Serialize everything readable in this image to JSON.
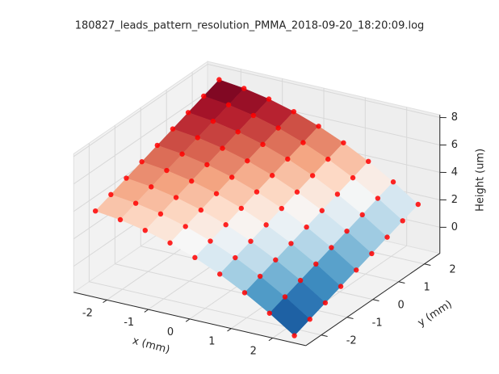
{
  "chart_data": {
    "type": "surface",
    "title": "180827_leads_pattern_resolution_PMMA_2018-09-20_18:20:09.log",
    "x_label": "x (mm)",
    "y_label": "y (mm)",
    "z_label": "Height (um)",
    "x": [
      -2.4,
      -1.8,
      -1.2,
      -0.6,
      0,
      0.6,
      1.2,
      1.8,
      2.4
    ],
    "y": [
      -2.4,
      -1.8,
      -1.2,
      -0.6,
      0,
      0.6,
      1.2,
      1.8,
      2.4
    ],
    "z": [
      [
        4.05,
        4.47,
        4.89,
        5.31,
        5.73,
        6.15,
        6.57,
        6.99,
        7.41
      ],
      [
        3.83,
        4.25,
        4.67,
        5.09,
        5.51,
        5.93,
        6.35,
        6.77,
        7.19
      ],
      [
        3.47,
        3.89,
        4.31,
        4.73,
        5.15,
        5.57,
        5.99,
        6.41,
        6.83
      ],
      [
        2.97,
        3.39,
        3.81,
        4.23,
        4.65,
        5.07,
        5.49,
        5.91,
        6.33
      ],
      [
        2.32,
        2.74,
        3.16,
        3.58,
        4,
        4.42,
        4.84,
        5.26,
        5.68
      ],
      [
        1.53,
        1.95,
        2.37,
        2.79,
        3.21,
        3.63,
        4.05,
        4.47,
        4.89
      ],
      [
        0.59,
        1.01,
        1.43,
        1.85,
        2.27,
        2.69,
        3.11,
        3.53,
        3.95
      ],
      [
        -0.49,
        -0.07,
        0.35,
        0.77,
        1.19,
        1.61,
        2.03,
        2.45,
        2.87
      ],
      [
        -1.71,
        -1.29,
        -0.87,
        -0.45,
        -0.03,
        0.39,
        0.81,
        1.23,
        1.65
      ]
    ],
    "xlim": [
      -2.8,
      2.8
    ],
    "ylim": [
      -2.6,
      2.6
    ],
    "zlim": [
      -1.9,
      8.2
    ],
    "xticks": [
      -2,
      -1,
      0,
      1,
      2
    ],
    "yticks": [
      -2,
      -1,
      0,
      1,
      2
    ],
    "zticks": [
      0,
      2,
      4,
      6,
      8
    ],
    "grid": true,
    "point_color": "#ff0000",
    "colormap": [
      "#053061",
      "#2166ac",
      "#4393c3",
      "#92c5de",
      "#d1e5f0",
      "#f7f7f7",
      "#fddbc7",
      "#f4a582",
      "#d6604d",
      "#b2182b",
      "#67001f"
    ]
  }
}
